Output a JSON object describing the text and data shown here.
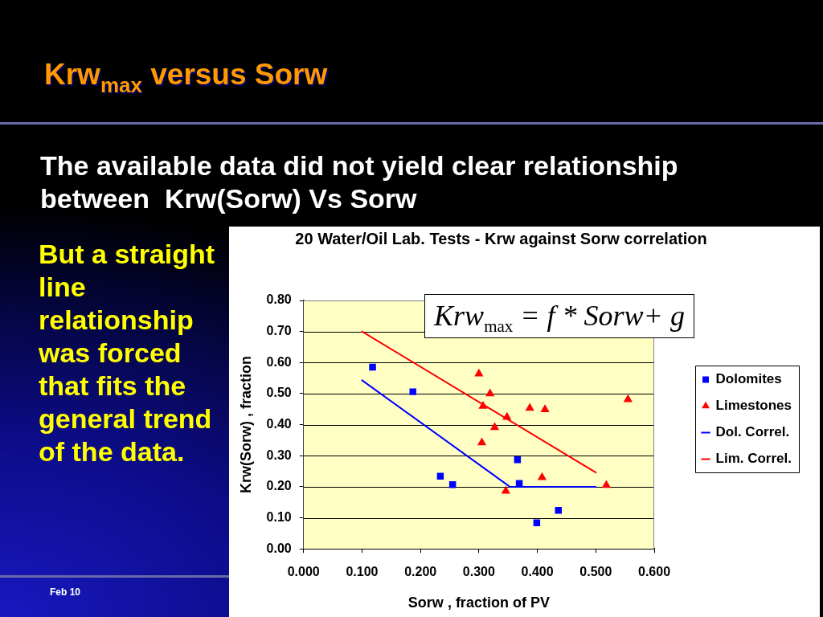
{
  "chart_data": {
    "type": "scatter",
    "title": "Krw$_{max}$ versus Sorw",
    "subtitle": "The available data did not yield clear relationship between  Krw(Sorw) Vs Sorw",
    "annotations": [
      "20 Water/Oil Lab. Tests - Krw against Sorw correlation",
      "Krw$_{max}$ = f * Sorw+ g",
      "But a straight line relationship was forced that fits the general trend of the data.",
      "Feb 10"
    ],
    "xlabel": "Sorw , fraction of PV",
    "ylabel": "Krw(Sorw) , fraction",
    "xlim": [
      0,
      0.6
    ],
    "xticks": [
      {
        "value": 0,
        "label": "0.000"
      },
      {
        "value": 0.1,
        "label": "0.100"
      },
      {
        "value": 0.2,
        "label": "0.200"
      },
      {
        "value": 0.3,
        "label": "0.300"
      },
      {
        "value": 0.4,
        "label": "0.400"
      },
      {
        "value": 0.5,
        "label": "0.500"
      },
      {
        "value": 0.6,
        "label": "0.600"
      }
    ],
    "ylim": [
      0,
      0.8
    ],
    "yticks": [
      {
        "value": 0,
        "label": "0.00"
      },
      {
        "value": 0.1,
        "label": "0.10"
      },
      {
        "value": 0.2,
        "label": "0.20"
      },
      {
        "value": 0.3,
        "label": "0.30"
      },
      {
        "value": 0.4,
        "label": "0.40"
      },
      {
        "value": 0.5,
        "label": "0.50"
      },
      {
        "value": 0.6,
        "label": "0.60"
      },
      {
        "value": 0.7,
        "label": "0.70"
      },
      {
        "value": 0.8,
        "label": "0.80"
      }
    ],
    "grid": "y",
    "legend": "right",
    "series": [
      {
        "name": "Dolomites",
        "type": "scatter",
        "color": "#0000ff",
        "marker": "square",
        "x": [
          0.118,
          0.187,
          0.234,
          0.255,
          0.366,
          0.369,
          0.399,
          0.436
        ],
        "values": [
          0.585,
          0.506,
          0.234,
          0.207,
          0.287,
          0.211,
          0.084,
          0.124
        ]
      },
      {
        "name": "Limestones",
        "type": "scatter",
        "color": "#ff0000",
        "marker": "triangle",
        "x": [
          0.3,
          0.319,
          0.307,
          0.348,
          0.327,
          0.305,
          0.387,
          0.413,
          0.408,
          0.346,
          0.518,
          0.555
        ],
        "values": [
          0.564,
          0.5,
          0.46,
          0.424,
          0.391,
          0.342,
          0.453,
          0.449,
          0.23,
          0.186,
          0.205,
          0.481
        ]
      },
      {
        "name": "Dol. Correl.",
        "type": "line",
        "color": "#0000ff",
        "marker": "none",
        "x": [
          0.1,
          0.353,
          0.5
        ],
        "values": [
          0.543,
          0.2,
          0.2
        ]
      },
      {
        "name": "Lim. Correl.",
        "type": "line",
        "color": "#ff0000",
        "marker": "none",
        "x": [
          0.1,
          0.5
        ],
        "values": [
          0.7,
          0.246
        ]
      }
    ]
  }
}
